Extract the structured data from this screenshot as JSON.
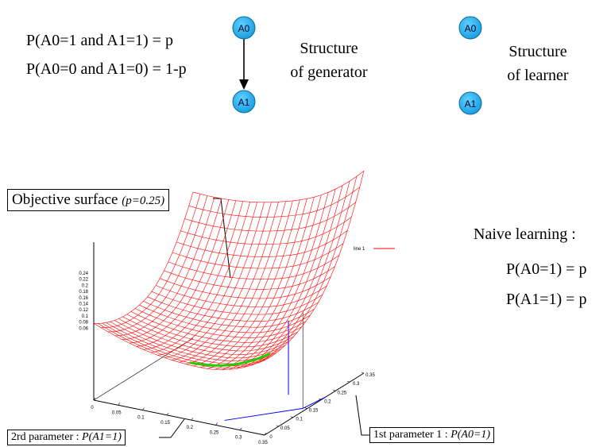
{
  "top": {
    "eq1": "P(A0=1 and A1=1) = p",
    "eq2": "P(A0=0 and A1=0) = 1-p",
    "generator": {
      "node_a0": "A0",
      "node_a1": "A1",
      "label_line1": "Structure",
      "label_line2": "of generator"
    },
    "learner": {
      "node_a0": "A0",
      "node_a1": "A1",
      "label_line1": "Structure",
      "label_line2": "of learner"
    }
  },
  "naive": {
    "title": "Naive learning :",
    "eq1": "P(A0=1) = p",
    "eq2": "P(A1=1) = p"
  },
  "objective": {
    "label": "Objective surface",
    "param": "(p=0.25)"
  },
  "param_labels": {
    "second_prefix": "2rd parameter : ",
    "second_var": "P(A1=1)",
    "first_prefix": "1st parameter 1 : ",
    "first_var": "P(A0=1)"
  },
  "chart_data": {
    "type": "surface",
    "legend": [
      {
        "name": "line 1",
        "color": "#ff0000"
      }
    ],
    "z_ticks": [
      "0.24",
      "0.22",
      "0.2",
      "0.18",
      "0.16",
      "0.14",
      "0.12",
      "0.1",
      "0.08",
      "0.06"
    ],
    "a1_ticks": [
      "0",
      "0.05",
      "0.1",
      "0.15",
      "0.2",
      "0.25",
      "0.3",
      "0.35"
    ],
    "a0_ticks": [
      "0",
      "0.05",
      "0.1",
      "0.15",
      "0.2",
      "0.25",
      "0.3",
      "0.35"
    ],
    "surface_color": "#ff0000",
    "minimum_color": "#22cc00",
    "frame_color": "#0000ff"
  }
}
